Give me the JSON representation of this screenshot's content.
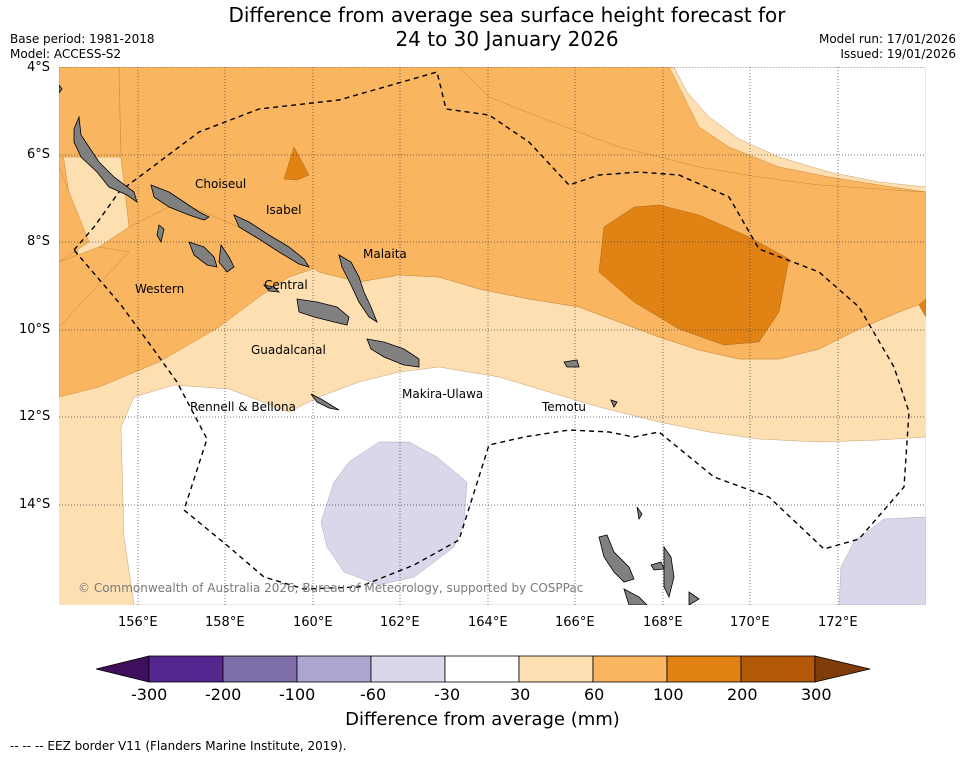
{
  "title": {
    "line1": "Difference from average sea surface height forecast for",
    "line2": "24 to 30 January 2026"
  },
  "meta_left": {
    "base_period": "Base period: 1981-2018",
    "model": "Model: ACCESS-S2"
  },
  "meta_right": {
    "model_run": "Model run: 17/01/2026",
    "issued": "Issued: 19/01/2026"
  },
  "map": {
    "lat_labels": [
      "4°S",
      "6°S",
      "8°S",
      "10°S",
      "12°S",
      "14°S"
    ],
    "lon_labels": [
      "156°E",
      "158°E",
      "160°E",
      "162°E",
      "164°E",
      "166°E",
      "168°E",
      "170°E",
      "172°E"
    ],
    "provinces": [
      "Choiseul",
      "Isabel",
      "Malaita",
      "Western",
      "Central",
      "Guadalcanal",
      "Rennell & Bellona",
      "Makira-Ulawa",
      "Temotu"
    ],
    "copyright": "© Commonwealth of Australia 2026, Bureau of Meteorology, supported by COSPPac"
  },
  "colorbar": {
    "ticks": [
      "-300",
      "-200",
      "-100",
      "-60",
      "-30",
      "30",
      "60",
      "100",
      "200",
      "300"
    ],
    "colors": [
      "#3f0f5e",
      "#54278f",
      "#7d6ea9",
      "#aba5cf",
      "#d8d8ea",
      "#ffffff",
      "#fddfb1",
      "#f9b560",
      "#e08214",
      "#b35806",
      "#7f3b08"
    ],
    "title": "Difference from average (mm)"
  },
  "legend": {
    "eez": "--  --  -- EEZ border V11 (Flanders Marine Institute, 2019)."
  }
}
